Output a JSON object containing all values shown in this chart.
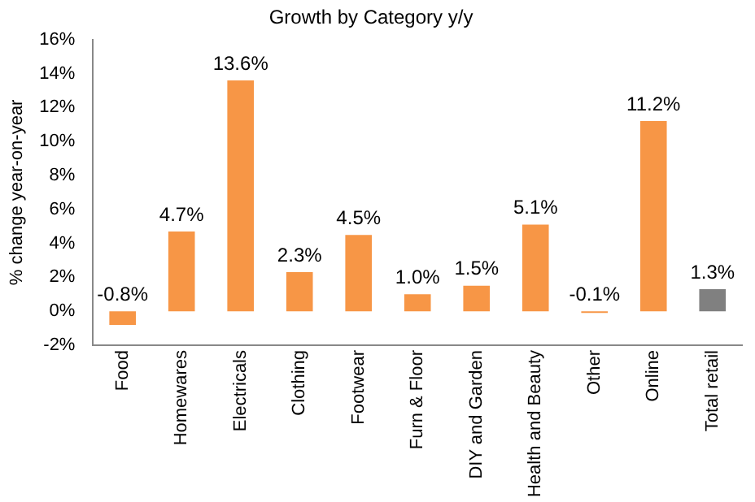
{
  "chart_data": {
    "type": "bar",
    "title": "Growth by Category y/y",
    "ylabel": "% change year-on-year",
    "categories": [
      "Food",
      "Homewares",
      "Electricals",
      "Clothing",
      "Footwear",
      "Furn & Floor",
      "DIY and Garden",
      "Health and Beauty",
      "Other",
      "Online",
      "Total retail"
    ],
    "values": [
      -0.8,
      4.7,
      13.6,
      2.3,
      4.5,
      1.0,
      1.5,
      5.1,
      -0.1,
      11.2,
      1.3
    ],
    "colors": [
      "#f79646",
      "#f79646",
      "#f79646",
      "#f79646",
      "#f79646",
      "#f79646",
      "#f79646",
      "#f79646",
      "#f79646",
      "#f79646",
      "#808080"
    ],
    "value_labels": [
      "-0.8%",
      "4.7%",
      "13.6%",
      "2.3%",
      "4.5%",
      "1.0%",
      "1.5%",
      "5.1%",
      "-0.1%",
      "11.2%",
      "1.3%"
    ],
    "ylim": [
      -2,
      16
    ],
    "yticks": [
      {
        "value": -2,
        "label": "-2%"
      },
      {
        "value": 0,
        "label": "0%"
      },
      {
        "value": 2,
        "label": "2%"
      },
      {
        "value": 4,
        "label": "4%"
      },
      {
        "value": 6,
        "label": "6%"
      },
      {
        "value": 8,
        "label": "8%"
      },
      {
        "value": 10,
        "label": "10%"
      },
      {
        "value": 12,
        "label": "12%"
      },
      {
        "value": 14,
        "label": "14%"
      },
      {
        "value": 16,
        "label": "16%"
      }
    ],
    "grid": false,
    "legend": false
  }
}
